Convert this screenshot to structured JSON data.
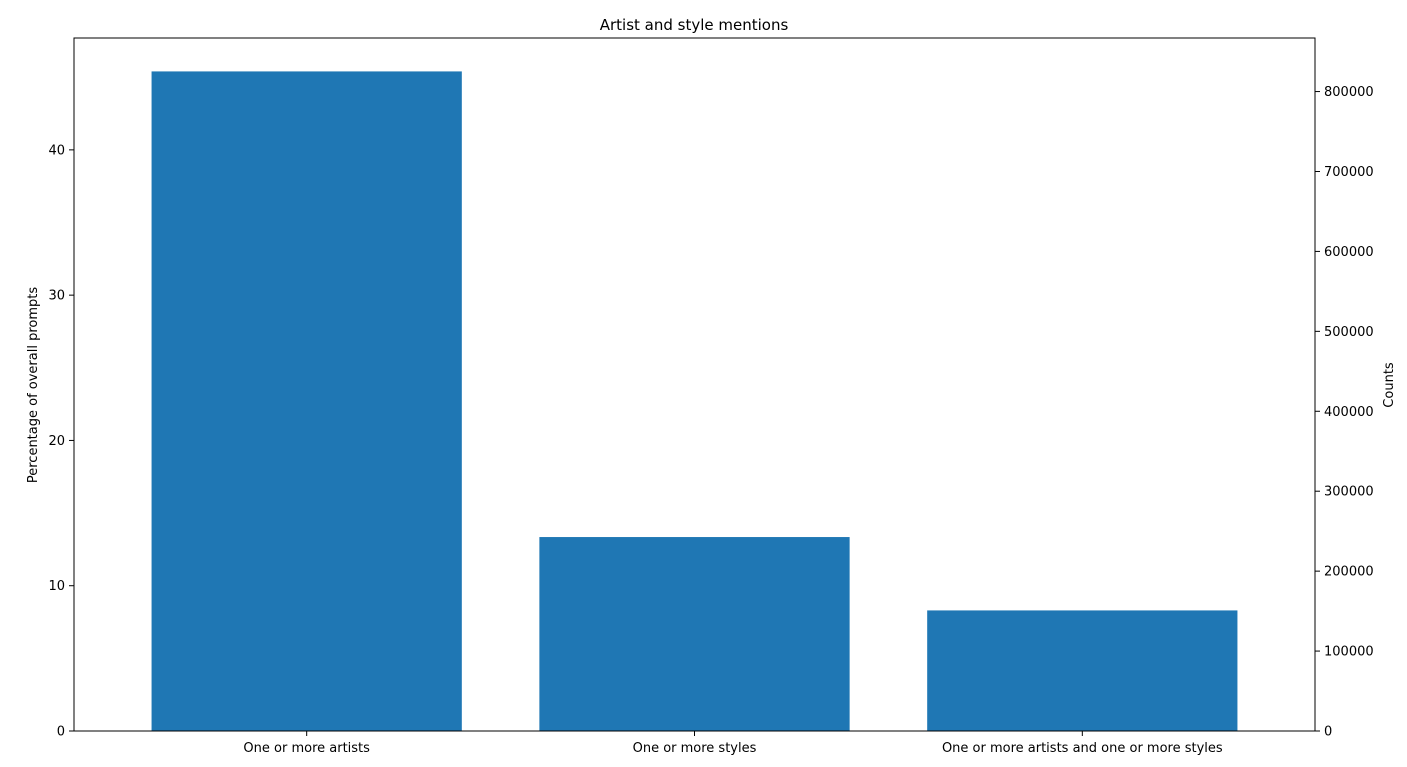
{
  "chart_data": {
    "type": "bar",
    "title": "Artist and style mentions",
    "categories": [
      "One or more artists",
      "One or more styles",
      "One or more artists and one or more styles"
    ],
    "values": [
      45.4,
      13.35,
      8.3
    ],
    "ylabel": "Percentage of overall prompts",
    "ylim": [
      0,
      47.7
    ],
    "yticks": [
      0,
      10,
      20,
      30,
      40
    ],
    "y2label": "Counts",
    "y2lim": [
      0,
      867000
    ],
    "y2ticks": [
      0,
      100000,
      200000,
      300000,
      400000,
      500000,
      600000,
      700000,
      800000
    ],
    "bar_color": "#1f77b4",
    "grid": false,
    "legend": "none"
  }
}
